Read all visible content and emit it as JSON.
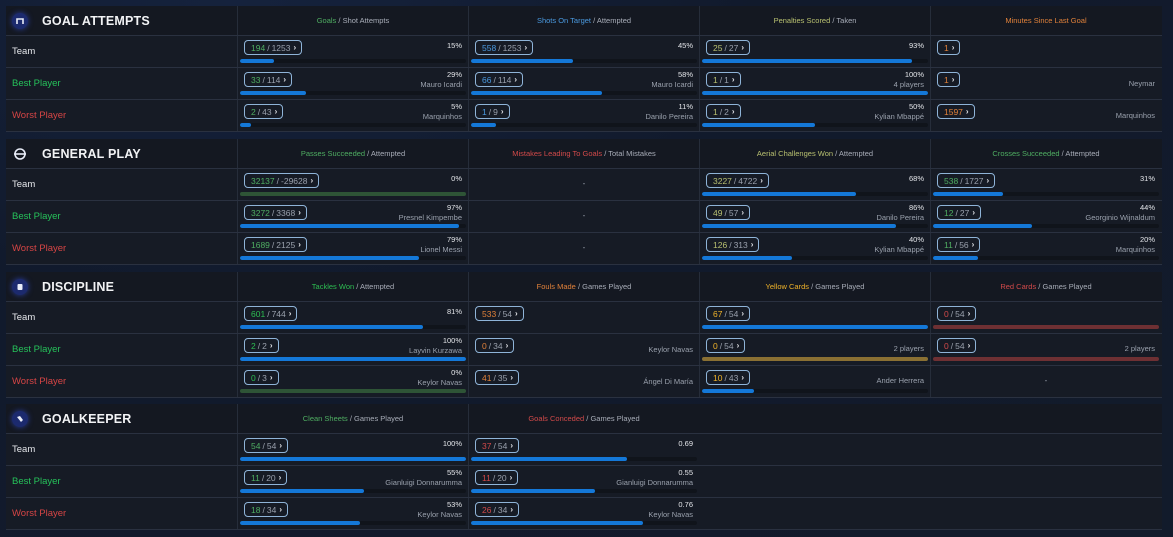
{
  "colors": {
    "bar_fill": "#1478d8",
    "bar_zero_green": "#2e5436",
    "bar_zero_yellow": "#8a7033",
    "bar_zero_red": "#6e3033",
    "best_label": "#26c25a",
    "worst_label": "#d64545"
  },
  "row_labels": {
    "team": "Team",
    "best": "Best Player",
    "worst": "Worst Player"
  },
  "sections": [
    {
      "title": "GOAL ATTEMPTS",
      "icon": "goal-net-icon",
      "columns": [
        {
          "head_main": "Goals",
          "head_rest": " / Shot Attempts",
          "color": "green"
        },
        {
          "head_main": "Shots On Target",
          "head_rest": " / Attempted",
          "color": "blue"
        },
        {
          "head_main": "Penalties Scored",
          "head_rest": " / Taken",
          "color": "olive"
        },
        {
          "head_main": "Minutes Since Last Goal",
          "head_rest": "",
          "color": "orange"
        }
      ],
      "rows": [
        [
          {
            "num": "194",
            "den": "1253",
            "pct": "15%",
            "fill": 15,
            "player": ""
          },
          {
            "num": "558",
            "den": "1253",
            "pct": "45%",
            "fill": 45,
            "player": ""
          },
          {
            "num": "25",
            "den": "27",
            "pct": "93%",
            "fill": 93,
            "player": ""
          },
          {
            "num": "1",
            "den": "",
            "pct": "",
            "fill": null,
            "player": ""
          }
        ],
        [
          {
            "num": "33",
            "den": "114",
            "pct": "29%",
            "fill": 29,
            "player": "Mauro Icardi"
          },
          {
            "num": "66",
            "den": "114",
            "pct": "58%",
            "fill": 58,
            "player": "Mauro Icardi"
          },
          {
            "num": "1",
            "den": "1",
            "pct": "100%",
            "fill": 100,
            "player": "4 players"
          },
          {
            "num": "1",
            "den": "",
            "pct": "",
            "fill": null,
            "player": "Neymar"
          }
        ],
        [
          {
            "num": "2",
            "den": "43",
            "pct": "5%",
            "fill": 5,
            "player": "Marquinhos"
          },
          {
            "num": "1",
            "den": "9",
            "pct": "11%",
            "fill": 11,
            "player": "Danilo Pereira"
          },
          {
            "num": "1",
            "den": "2",
            "pct": "50%",
            "fill": 50,
            "player": "Kylian Mbappé"
          },
          {
            "num": "1597",
            "den": "",
            "pct": "",
            "fill": null,
            "player": "Marquinhos"
          }
        ]
      ]
    },
    {
      "title": "GENERAL PLAY",
      "icon": "pitch-circle-icon",
      "columns": [
        {
          "head_main": "Passes Succeeded",
          "head_rest": " / Attempted",
          "color": "green"
        },
        {
          "head_main": "Mistakes Leading To Goals",
          "head_rest": " / Total Mistakes",
          "color": "red"
        },
        {
          "head_main": "Aerial Challenges Won",
          "head_rest": " / Attempted",
          "color": "olive"
        },
        {
          "head_main": "Crosses Succeeded",
          "head_rest": " / Attempted",
          "color": "green"
        }
      ],
      "rows": [
        [
          {
            "num": "32137",
            "den": "-29628",
            "pct": "0%",
            "fill": 0,
            "zero": "green",
            "player": ""
          },
          {
            "dash": "-"
          },
          {
            "num": "3227",
            "den": "4722",
            "pct": "68%",
            "fill": 68,
            "player": ""
          },
          {
            "num": "538",
            "den": "1727",
            "pct": "31%",
            "fill": 31,
            "player": ""
          }
        ],
        [
          {
            "num": "3272",
            "den": "3368",
            "pct": "97%",
            "fill": 97,
            "player": "Presnel Kimpembe"
          },
          {
            "dash": "-"
          },
          {
            "num": "49",
            "den": "57",
            "pct": "86%",
            "fill": 86,
            "player": "Danilo Pereira"
          },
          {
            "num": "12",
            "den": "27",
            "pct": "44%",
            "fill": 44,
            "player": "Georginio Wijnaldum"
          }
        ],
        [
          {
            "num": "1689",
            "den": "2125",
            "pct": "79%",
            "fill": 79,
            "player": "Lionel Messi"
          },
          {
            "dash": "-"
          },
          {
            "num": "126",
            "den": "313",
            "pct": "40%",
            "fill": 40,
            "player": "Kylian Mbappé"
          },
          {
            "num": "11",
            "den": "56",
            "pct": "20%",
            "fill": 20,
            "player": "Marquinhos"
          }
        ]
      ]
    },
    {
      "title": "DISCIPLINE",
      "icon": "card-icon",
      "columns": [
        {
          "head_main": "Tackles Won",
          "head_rest": " / Attempted",
          "color": "brightgreen"
        },
        {
          "head_main": "Fouls Made",
          "head_rest": " / Games Played",
          "color": "orange"
        },
        {
          "head_main": "Yellow Cards",
          "head_rest": " / Games Played",
          "color": "yellow"
        },
        {
          "head_main": "Red Cards",
          "head_rest": " / Games Played",
          "color": "red"
        }
      ],
      "rows": [
        [
          {
            "num": "601",
            "den": "744",
            "pct": "81%",
            "fill": 81,
            "player": ""
          },
          {
            "num": "533",
            "den": "54",
            "pct": "",
            "fill": null,
            "player": ""
          },
          {
            "num": "67",
            "den": "54",
            "pct": "",
            "fill": 100,
            "player": ""
          },
          {
            "num": "0",
            "den": "54",
            "pct": "",
            "fill": 0,
            "zero": "red",
            "player": ""
          }
        ],
        [
          {
            "num": "2",
            "den": "2",
            "pct": "100%",
            "fill": 100,
            "player": "Layvin Kurzawa"
          },
          {
            "num": "0",
            "den": "34",
            "pct": "",
            "fill": null,
            "player": "Keylor Navas"
          },
          {
            "num": "0",
            "den": "54",
            "pct": "",
            "fill": 0,
            "zero": "yellow",
            "player": "2 players"
          },
          {
            "num": "0",
            "den": "54",
            "pct": "",
            "fill": 0,
            "zero": "red",
            "player": "2 players"
          }
        ],
        [
          {
            "num": "0",
            "den": "3",
            "pct": "0%",
            "fill": 0,
            "zero": "green",
            "player": "Keylor Navas"
          },
          {
            "num": "41",
            "den": "35",
            "pct": "",
            "fill": null,
            "player": "Ángel Di María"
          },
          {
            "num": "10",
            "den": "43",
            "pct": "",
            "fill": 23,
            "player": "Ander Herrera"
          },
          {
            "dash": "-"
          }
        ]
      ]
    },
    {
      "title": "GOALKEEPER",
      "icon": "goalkeeper-glove-icon",
      "columns": [
        {
          "head_main": "Clean Sheets",
          "head_rest": " / Games Played",
          "color": "green"
        },
        {
          "head_main": "Goals Conceded",
          "head_rest": " / Games Played",
          "color": "red"
        }
      ],
      "rows": [
        [
          {
            "num": "54",
            "den": "54",
            "pct": "100%",
            "fill": 100,
            "player": ""
          },
          {
            "num": "37",
            "den": "54",
            "pct": "0.69",
            "fill": 69,
            "player": ""
          }
        ],
        [
          {
            "num": "11",
            "den": "20",
            "pct": "55%",
            "fill": 55,
            "player": "Gianluigi Donnarumma"
          },
          {
            "num": "11",
            "den": "20",
            "pct": "0.55",
            "fill": 55,
            "player": "Gianluigi Donnarumma"
          }
        ],
        [
          {
            "num": "18",
            "den": "34",
            "pct": "53%",
            "fill": 53,
            "player": "Keylor Navas"
          },
          {
            "num": "26",
            "den": "34",
            "pct": "0.76",
            "fill": 76,
            "player": "Keylor Navas"
          }
        ]
      ]
    }
  ]
}
